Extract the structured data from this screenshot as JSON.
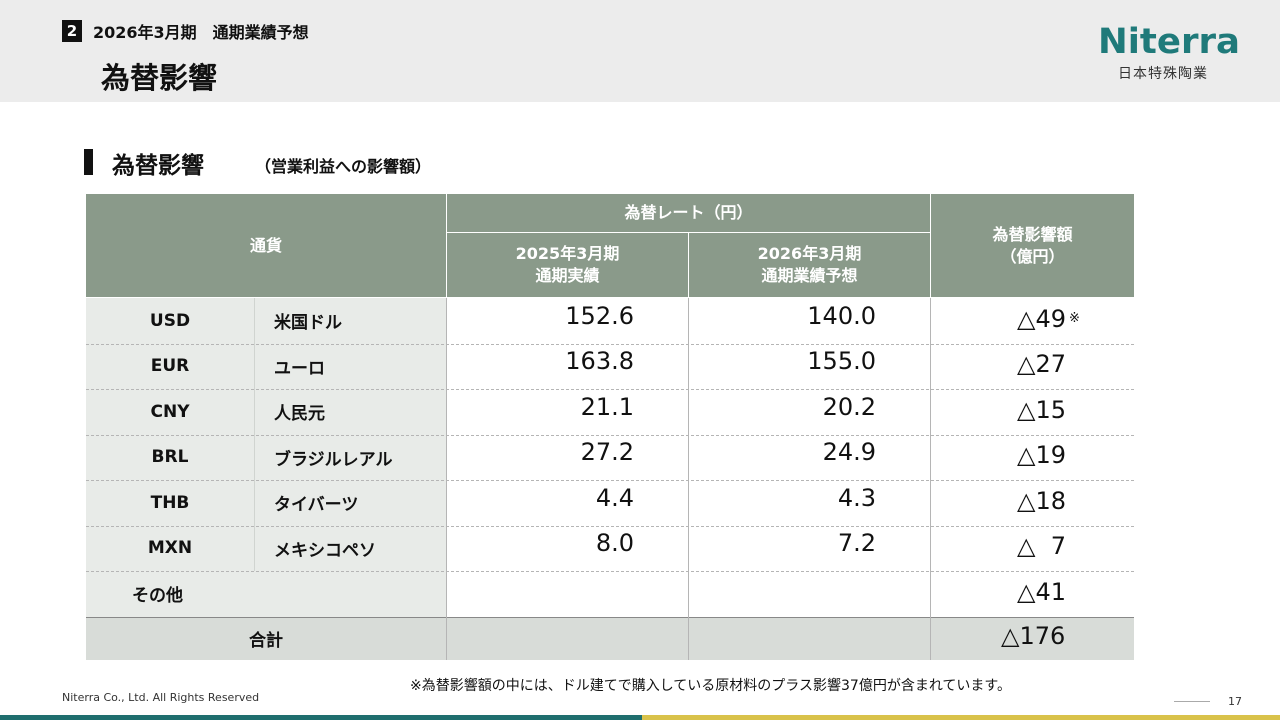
{
  "header": {
    "section_number": "2",
    "section_title": "2026年3月期　通期業績予想",
    "page_title": "為替影響"
  },
  "logo": {
    "wordmark": "Niterra",
    "subtext": "日本特殊陶業",
    "color": "#1f7a7a"
  },
  "content": {
    "heading": "為替影響",
    "heading_sub": "（営業利益への影響額）"
  },
  "table": {
    "headers": {
      "currency": "通貨",
      "rate_group": "為替レート（円）",
      "fy2025_line1": "2025年3月期",
      "fy2025_line2": "通期実績",
      "fy2026_line1": "2026年3月期",
      "fy2026_line2": "通期業績予想",
      "impact_line1": "為替影響額",
      "impact_line2": "（億円）"
    },
    "rows": [
      {
        "code": "USD",
        "name": "米国ドル",
        "fy2025": "152.6",
        "fy2026": "140.0",
        "impact": "△49",
        "note": "※"
      },
      {
        "code": "EUR",
        "name": "ユーロ",
        "fy2025": "163.8",
        "fy2026": "155.0",
        "impact": "△27",
        "note": ""
      },
      {
        "code": "CNY",
        "name": "人民元",
        "fy2025": "21.1",
        "fy2026": "20.2",
        "impact": "△15",
        "note": ""
      },
      {
        "code": "BRL",
        "name": "ブラジルレアル",
        "fy2025": "27.2",
        "fy2026": "24.9",
        "impact": "△19",
        "note": ""
      },
      {
        "code": "THB",
        "name": "タイバーツ",
        "fy2025": "4.4",
        "fy2026": "4.3",
        "impact": "△18",
        "note": ""
      },
      {
        "code": "MXN",
        "name": "メキシコペソ",
        "fy2025": "8.0",
        "fy2026": "7.2",
        "impact": "△  7",
        "note": ""
      }
    ],
    "other": {
      "label": "その他",
      "impact": "△41"
    },
    "total": {
      "label": "合計",
      "impact": "△176"
    }
  },
  "footnote": "※為替影響額の中には、ドル建てで購入している原材料のプラス影響37億円が含まれています。",
  "footer": {
    "copyright": "Niterra Co., Ltd. All Rights Reserved",
    "page_number": "17"
  }
}
